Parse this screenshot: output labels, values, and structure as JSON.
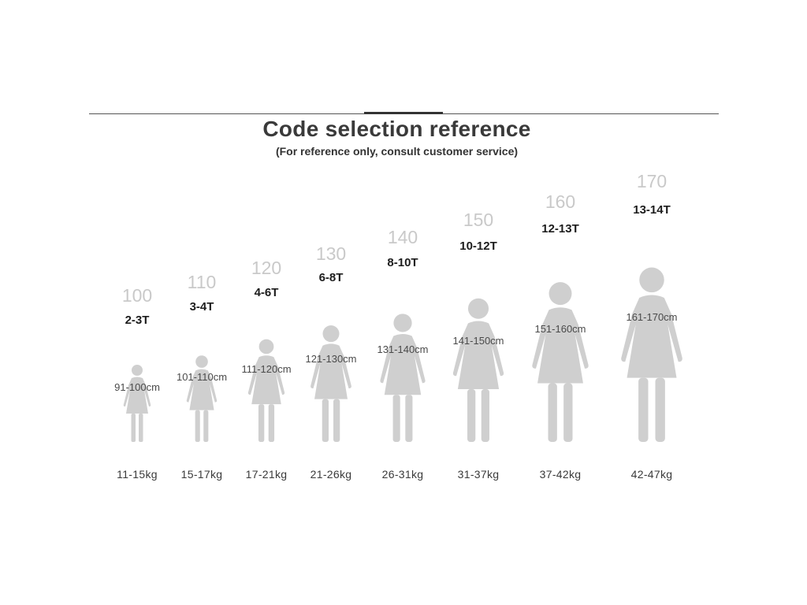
{
  "header": {
    "title": "Code selection reference",
    "subtitle": "(For reference only, consult customer service)"
  },
  "sizes": [
    {
      "height": "100",
      "age": "2-3T",
      "range": "91-100cm",
      "weight": "11-15kg"
    },
    {
      "height": "110",
      "age": "3-4T",
      "range": "101-110cm",
      "weight": "15-17kg"
    },
    {
      "height": "120",
      "age": "4-6T",
      "range": "111-120cm",
      "weight": "17-21kg"
    },
    {
      "height": "130",
      "age": "6-8T",
      "range": "121-130cm",
      "weight": "21-26kg"
    },
    {
      "height": "140",
      "age": "8-10T",
      "range": "131-140cm",
      "weight": "26-31kg"
    },
    {
      "height": "150",
      "age": "10-12T",
      "range": "141-150cm",
      "weight": "31-37kg"
    },
    {
      "height": "160",
      "age": "12-13T",
      "range": "151-160cm",
      "weight": "37-42kg"
    },
    {
      "height": "170",
      "age": "13-14T",
      "range": "161-170cm",
      "weight": "42-47kg"
    }
  ],
  "colors": {
    "figure": "#cfcfcf",
    "height_number": "#c9c9c9",
    "age_text": "#1c1c1c",
    "rule": "#555555"
  },
  "icons": {
    "figure": "person-dress-silhouette-icon"
  }
}
